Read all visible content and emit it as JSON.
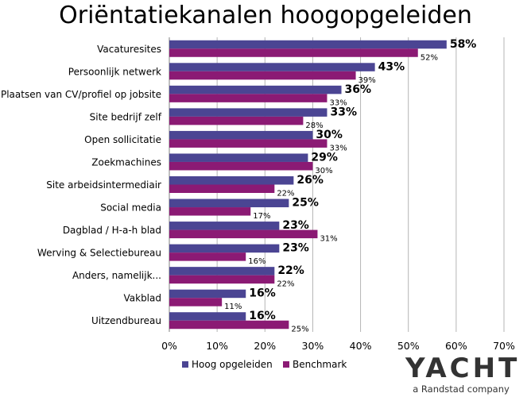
{
  "title": "Oriëntatiekanalen hoogopgeleiden",
  "colors": {
    "hoog": "#4B4593",
    "benchmark": "#8B1A74",
    "grid": "#B5B5B5",
    "axis": "#808080"
  },
  "logo": {
    "main": "YACHT",
    "sub": "a Randstad company"
  },
  "chart_data": {
    "type": "bar",
    "orientation": "horizontal",
    "title": "Oriëntatiekanalen hoogopgeleiden",
    "categories": [
      "Vacaturesites",
      "Persoonlijk netwerk",
      "Plaatsen van CV/profiel op jobsite",
      "Site bedrijf zelf",
      "Open sollicitatie",
      "Zoekmachines",
      "Site arbeidsintermediair",
      "Social media",
      "Dagblad / H-a-h blad",
      "Werving & Selectiebureau",
      "Anders, namelijk...",
      "Vakblad",
      "Uitzendbureau"
    ],
    "series": [
      {
        "name": "Hoog opgeleiden",
        "values": [
          58,
          43,
          36,
          33,
          30,
          29,
          26,
          25,
          23,
          23,
          22,
          16,
          16
        ]
      },
      {
        "name": "Benchmark",
        "values": [
          52,
          39,
          33,
          28,
          33,
          30,
          22,
          17,
          31,
          16,
          22,
          11,
          25
        ]
      }
    ],
    "xlim": [
      0,
      70
    ],
    "xticks": [
      0,
      10,
      20,
      30,
      40,
      50,
      60,
      70
    ],
    "tick_format": "%",
    "grid": true,
    "legend_position": "bottom"
  }
}
